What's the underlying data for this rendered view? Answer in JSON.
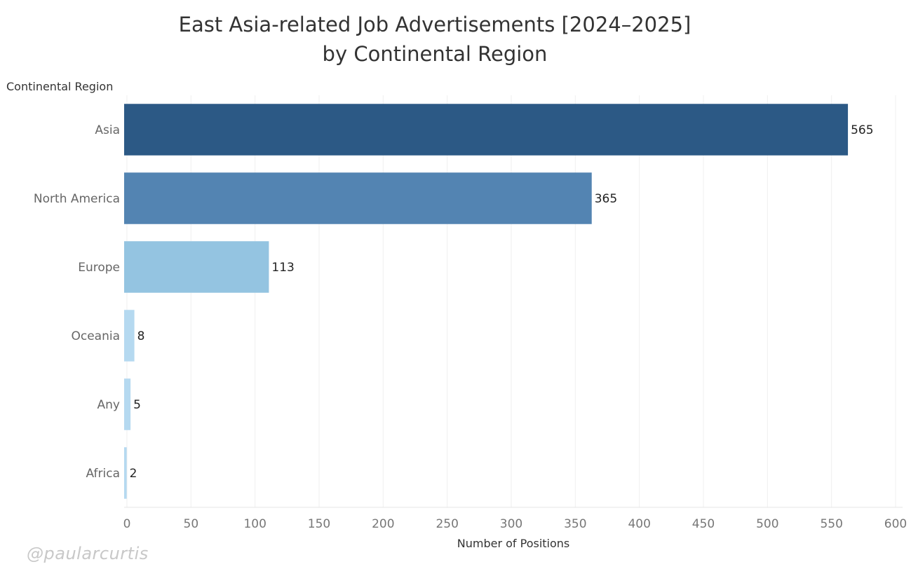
{
  "chart_data": {
    "type": "bar",
    "orientation": "horizontal",
    "title": "East Asia-related Job Advertisements [2024–2025]",
    "subtitle": "by Continental Region",
    "row_header": "Continental Region",
    "xlabel": "Number of Positions",
    "categories": [
      "Asia",
      "North America",
      "Europe",
      "Oceania",
      "Any",
      "Africa"
    ],
    "values": [
      565,
      365,
      113,
      8,
      5,
      2
    ],
    "value_labels": [
      "565",
      "365",
      "113",
      "8",
      "5",
      "2"
    ],
    "bar_colors": [
      "#2c5985",
      "#5384b2",
      "#94c4e1",
      "#b5d9f0",
      "#b5d9f0",
      "#b5d9f0"
    ],
    "xlim": [
      0,
      600
    ],
    "xticks": [
      0,
      50,
      100,
      150,
      200,
      250,
      300,
      350,
      400,
      450,
      500,
      550,
      600
    ],
    "grid": true
  },
  "watermark": "@paularcurtis"
}
